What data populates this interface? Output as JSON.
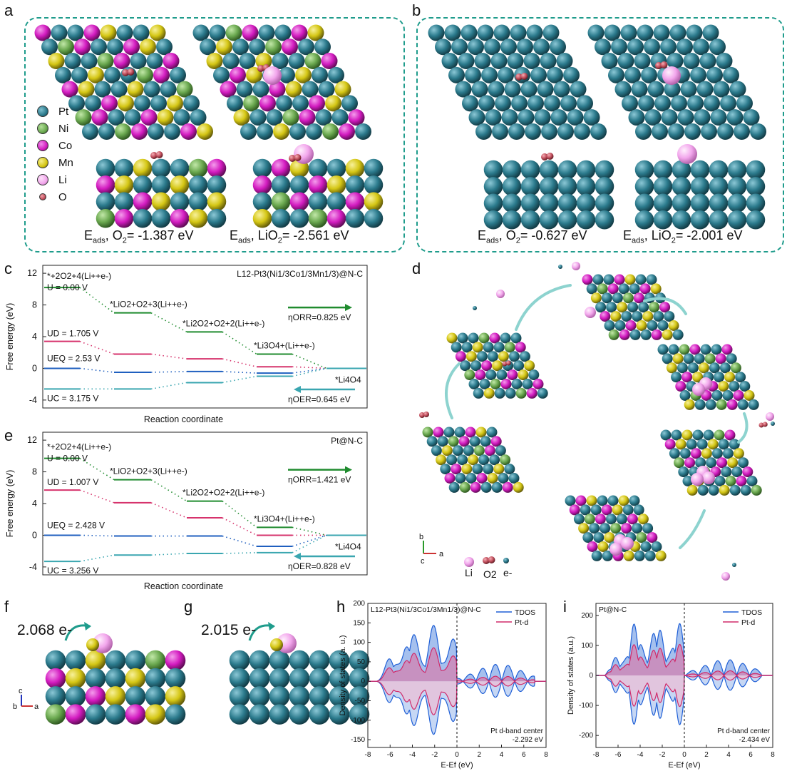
{
  "panels": {
    "a": "a",
    "b": "b",
    "c": "c",
    "d": "d",
    "e": "e",
    "f": "f",
    "g": "g",
    "h": "h",
    "i": "i"
  },
  "legend": [
    {
      "label": "Pt",
      "color": "#2b7a8c"
    },
    {
      "label": "Ni",
      "color": "#6aa84f"
    },
    {
      "label": "Co",
      "color": "#d31bc0"
    },
    {
      "label": "Mn",
      "color": "#d4c614"
    },
    {
      "label": "Li",
      "color": "#f2a6ec"
    },
    {
      "label": "O",
      "color": "#c2505e"
    }
  ],
  "captions": {
    "a_left": "Eads, O2= -1.387 eV",
    "a_right": "Eads, LiO2= -2.561 eV",
    "b_left": "Eads, O2= -0.627 eV",
    "b_right": "Eads, LiO2= -2.001 eV"
  },
  "cap_parts": {
    "E": "E",
    "ads": "ads",
    "comma_o2": ", O",
    "sub2": "2",
    "a1": "= -1.387 eV",
    "a2": "= -2.561 eV",
    "b1": "= -0.627 eV",
    "b2": "= -2.001 eV",
    "comma_lio2": ", LiO"
  },
  "panel_c": {
    "title": "L12-Pt3(Ni1/3Co1/3Mn1/3)@N-C",
    "ylabel": "Free energy (eV)",
    "xlabel": "Reaction coordinate",
    "yticks": [
      "12",
      "8",
      "4",
      "0",
      "-4"
    ],
    "steps": [
      "*+2O2+4(Li++e-)",
      "*LiO2+O2+3(Li++e-)",
      "*Li2O2+O2+2(Li++e-)",
      "*Li3O4+(Li++e-)",
      "*Li4O4"
    ],
    "U0": "U = 0.00 V",
    "UD": "UD = 1.705 V",
    "UEQ": "UEQ = 2.53 V",
    "UC": "UC = 3.175 V",
    "orr": "ηORR=0.825 eV",
    "oer": "ηOER=0.645 eV",
    "chart_data": {
      "type": "line",
      "levels": {
        "U0": [
          10.2,
          7.0,
          4.6,
          1.8,
          0
        ],
        "UD": [
          3.4,
          1.8,
          1.2,
          0.2,
          0
        ],
        "UEQ": [
          0,
          -0.5,
          -0.4,
          -0.6,
          0
        ],
        "UC": [
          -2.6,
          -2.6,
          -1.8,
          -1.0,
          0
        ]
      }
    }
  },
  "panel_e": {
    "title": "Pt@N-C",
    "ylabel": "Free energy (eV)",
    "xlabel": "Reaction coordinate",
    "yticks": [
      "12",
      "8",
      "4",
      "0",
      "-4"
    ],
    "steps": [
      "*+2O2+4(Li++e-)",
      "*LiO2+O2+3(Li++e-)",
      "*Li2O2+O2+2(Li++e-)",
      "*Li3O4+(Li++e-)",
      "*Li4O4"
    ],
    "U0": "U = 0.00 V",
    "UD": "UD = 1.007 V",
    "UEQ": "UEQ = 2.428 V",
    "UC": "UC = 3.256 V",
    "orr": "ηORR=1.421 eV",
    "oer": "ηOER=0.828 eV",
    "chart_data": {
      "type": "line",
      "levels": {
        "U0": [
          9.7,
          7.0,
          4.3,
          1.0,
          0
        ],
        "UD": [
          5.7,
          4.1,
          2.2,
          0.0,
          0
        ],
        "UEQ": [
          0,
          -0.1,
          -0.1,
          -1.4,
          0
        ],
        "UC": [
          -3.3,
          -2.5,
          -2.3,
          -2.2,
          0
        ]
      }
    }
  },
  "panel_d": {
    "li": "Li",
    "o2": "O2",
    "e": "e-",
    "axis_b": "b",
    "axis_a": "a",
    "axis_c": "c"
  },
  "panel_f": {
    "charge": "2.068 e-",
    "axis_c": "c",
    "axis_b": "b",
    "axis_a": "a"
  },
  "panel_g": {
    "charge": "2.015 e-"
  },
  "panel_h": {
    "title": "L12-Pt3(Ni1/3Co1/3Mn1/3)@N-C",
    "ylabel": "Density of states (a. u.)",
    "xlabel": "E-Ef (eV)",
    "legend": [
      "TDOS",
      "Pt-d"
    ],
    "center_label": "Pt d-band center",
    "center_value": "-2.292 eV",
    "chart_data": {
      "type": "line",
      "xlim": [
        -8,
        8
      ],
      "ylim": [
        -170,
        200
      ],
      "xticks": [
        -8,
        -6,
        -4,
        -2,
        0,
        2,
        4,
        6,
        8
      ],
      "yticks": [
        200,
        150,
        100,
        50,
        0,
        -50,
        -100,
        -150
      ]
    }
  },
  "panel_i": {
    "title": "Pt@N-C",
    "ylabel": "Density of states (a.u.)",
    "xlabel": "E-Ef (eV)",
    "legend": [
      "TDOS",
      "Pt-d"
    ],
    "center_label": "Pt d-band center",
    "center_value": "-2.434 eV",
    "chart_data": {
      "type": "line",
      "xlim": [
        -8,
        8
      ],
      "ylim": [
        -240,
        240
      ],
      "xticks": [
        -8,
        -6,
        -4,
        -2,
        0,
        2,
        4,
        6,
        8
      ],
      "yticks": [
        200,
        100,
        0,
        -100,
        -200
      ]
    }
  }
}
